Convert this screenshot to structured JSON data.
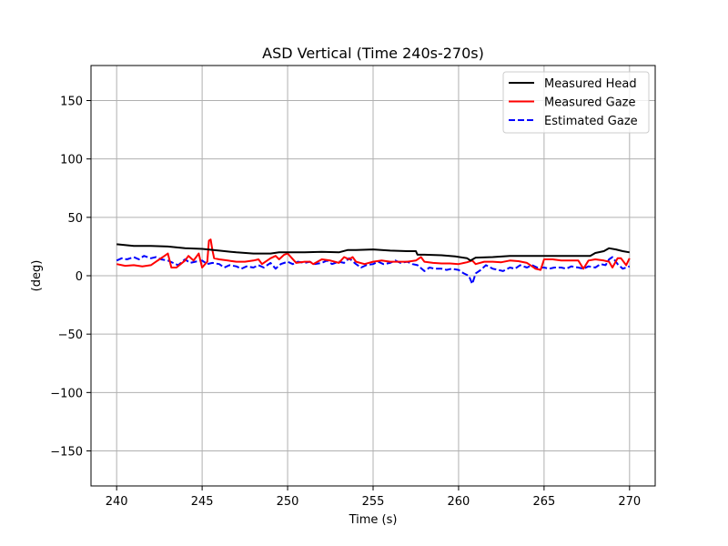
{
  "chart_data": {
    "type": "line",
    "title": "ASD Vertical (Time 240s-270s)",
    "xlabel": "Time (s)",
    "ylabel": "(deg)",
    "xlim": [
      238.5,
      271.5
    ],
    "ylim": [
      -180,
      180
    ],
    "xticks": [
      240,
      245,
      250,
      255,
      260,
      265,
      270
    ],
    "yticks": [
      -150,
      -100,
      -50,
      0,
      50,
      100,
      150
    ],
    "ytick_labels": [
      "−150",
      "−100",
      "−50",
      "0",
      "50",
      "100",
      "150"
    ],
    "grid": true,
    "legend_position": "top-right",
    "series": [
      {
        "name": "Measured Head",
        "color": "#000000",
        "dash": "solid",
        "x": [
          240.0,
          241.0,
          242.0,
          243.0,
          244.0,
          245.0,
          246.0,
          247.0,
          248.0,
          249.0,
          249.5,
          250.0,
          251.0,
          252.0,
          253.0,
          253.5,
          254.0,
          255.0,
          256.0,
          257.0,
          257.5,
          257.6,
          258.0,
          259.0,
          259.8,
          260.5,
          260.7,
          261.0,
          262.0,
          263.0,
          264.0,
          265.0,
          266.0,
          267.0,
          267.7,
          268.0,
          268.5,
          268.8,
          269.2,
          269.6,
          270.0
        ],
        "y": [
          27,
          25.5,
          25.5,
          25,
          23.5,
          23,
          21.5,
          20,
          19,
          19,
          20,
          20,
          20,
          20.5,
          20,
          22,
          22,
          22.5,
          21.5,
          21,
          21,
          18,
          18,
          17.5,
          16.5,
          15,
          13,
          15.5,
          16,
          17,
          17,
          17,
          17,
          17,
          17,
          19.5,
          21,
          23.5,
          22.5,
          21,
          20
        ]
      },
      {
        "name": "Measured Gaze",
        "color": "#ff0000",
        "dash": "solid",
        "x": [
          240.0,
          240.5,
          241.0,
          241.5,
          242.0,
          242.3,
          242.5,
          242.8,
          243.0,
          243.2,
          243.5,
          244.0,
          244.2,
          244.5,
          244.8,
          245.0,
          245.3,
          245.4,
          245.5,
          245.6,
          245.7,
          246.0,
          246.5,
          247.0,
          247.5,
          248.0,
          248.3,
          248.5,
          249.0,
          249.3,
          249.5,
          249.8,
          250.0,
          250.5,
          251.0,
          251.3,
          251.5,
          252.0,
          252.5,
          253.0,
          253.3,
          253.6,
          253.8,
          254.0,
          254.5,
          255.0,
          255.5,
          256.0,
          256.5,
          257.0,
          257.5,
          257.8,
          258.0,
          258.5,
          259.0,
          259.5,
          260.0,
          260.5,
          260.8,
          261.0,
          261.5,
          262.0,
          262.5,
          263.0,
          263.5,
          264.0,
          264.3,
          264.5,
          264.8,
          265.0,
          265.5,
          266.0,
          266.5,
          267.0,
          267.3,
          267.6,
          268.0,
          268.5,
          268.8,
          269.0,
          269.3,
          269.5,
          269.8,
          270.0
        ],
        "y": [
          10,
          8.5,
          9,
          8,
          9,
          12,
          14,
          17,
          19,
          7,
          7,
          13,
          17,
          13,
          19,
          7,
          12,
          30,
          31,
          22,
          15,
          14,
          13,
          12,
          12,
          13,
          14,
          10,
          15,
          17,
          14,
          18,
          19,
          11,
          12,
          12,
          10,
          14,
          13,
          11,
          16,
          14,
          16,
          12,
          10,
          12,
          13,
          12,
          12,
          12,
          13,
          16,
          12,
          11,
          10.5,
          10.5,
          10,
          11.5,
          13,
          10,
          12,
          12,
          11.5,
          13,
          12.5,
          11,
          8,
          6,
          5,
          14,
          14,
          13,
          13,
          13,
          6,
          13,
          14,
          13,
          12,
          7,
          15,
          15,
          9,
          15
        ]
      },
      {
        "name": "Estimated Gaze",
        "color": "#0000ff",
        "dash": "dashed",
        "x": [
          240.0,
          240.3,
          240.6,
          241.0,
          241.3,
          241.6,
          242.0,
          242.3,
          242.6,
          243.0,
          243.3,
          243.6,
          244.0,
          244.3,
          244.6,
          245.0,
          245.3,
          245.6,
          246.0,
          246.3,
          246.6,
          247.0,
          247.3,
          247.6,
          248.0,
          248.3,
          248.6,
          249.0,
          249.3,
          249.6,
          250.0,
          250.3,
          250.6,
          251.0,
          251.3,
          251.6,
          252.0,
          252.3,
          252.6,
          253.0,
          253.3,
          253.6,
          254.0,
          254.3,
          254.6,
          255.0,
          255.3,
          255.6,
          256.0,
          256.3,
          256.6,
          257.0,
          257.3,
          257.6,
          258.0,
          258.3,
          258.6,
          259.0,
          259.3,
          259.6,
          260.0,
          260.3,
          260.6,
          260.8,
          261.0,
          261.3,
          261.6,
          262.0,
          262.3,
          262.6,
          263.0,
          263.3,
          263.6,
          264.0,
          264.3,
          264.6,
          265.0,
          265.3,
          265.6,
          266.0,
          266.3,
          266.6,
          267.0,
          267.3,
          267.6,
          268.0,
          268.3,
          268.6,
          268.8,
          269.0,
          269.3,
          269.6,
          270.0
        ],
        "y": [
          13,
          15,
          14,
          16,
          14,
          17,
          15,
          16,
          14,
          13,
          11,
          9,
          14,
          11,
          12,
          13,
          10,
          11,
          10,
          7,
          9,
          8,
          6,
          8,
          7,
          9,
          7,
          11,
          6,
          10,
          12,
          10,
          12,
          11,
          12,
          10,
          11,
          13,
          10,
          12,
          11,
          15,
          10,
          7,
          9,
          10,
          12,
          10,
          11,
          13,
          11,
          12,
          10,
          9,
          4,
          7,
          6,
          6,
          5,
          6,
          5,
          2,
          0,
          -7,
          2,
          5,
          9,
          6,
          5,
          4,
          7,
          6,
          9,
          7,
          9,
          7,
          7,
          6,
          7,
          7,
          6,
          8,
          7,
          6,
          8,
          7,
          10,
          9,
          14,
          16,
          10,
          6,
          8
        ]
      }
    ]
  }
}
